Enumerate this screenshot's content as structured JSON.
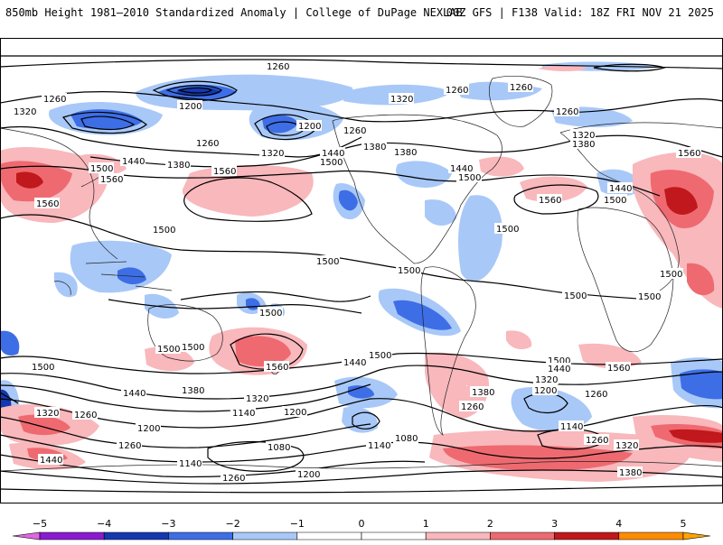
{
  "header": {
    "title_left": "850mb Height 1981–2010 Standardized Anomaly | College of DuPage NEXLAB",
    "title_right": "00Z GFS | F138 Valid: 18Z FRI NOV 21 2025"
  },
  "colorbar": {
    "ticks": [
      "−5",
      "−4",
      "−3",
      "−2",
      "−1",
      "0",
      "1",
      "2",
      "3",
      "4",
      "5"
    ],
    "colors": [
      "#e066e0",
      "#8a1ad0",
      "#1538b0",
      "#3e6ee6",
      "#a8c8f8",
      "#ffffff",
      "#ffffff",
      "#f8b8bc",
      "#ee6a70",
      "#c0181c",
      "#ffa500"
    ]
  },
  "contour_labels": [
    {
      "text": "1260"
    },
    {
      "text": "1260"
    },
    {
      "text": "1320"
    },
    {
      "text": "1200"
    },
    {
      "text": "1200"
    },
    {
      "text": "1260"
    },
    {
      "text": "1320"
    },
    {
      "text": "1260"
    },
    {
      "text": "1260"
    },
    {
      "text": "1260"
    },
    {
      "text": "1320"
    },
    {
      "text": "1260"
    },
    {
      "text": "1320"
    },
    {
      "text": "1380"
    },
    {
      "text": "1380"
    },
    {
      "text": "1440"
    },
    {
      "text": "1500"
    },
    {
      "text": "1560"
    },
    {
      "text": "1440"
    },
    {
      "text": "1380"
    },
    {
      "text": "1560"
    },
    {
      "text": "1380"
    },
    {
      "text": "1440"
    },
    {
      "text": "1500"
    },
    {
      "text": "1440"
    },
    {
      "text": "1500"
    },
    {
      "text": "1560"
    },
    {
      "text": "1560"
    },
    {
      "text": "1440"
    },
    {
      "text": "1500"
    },
    {
      "text": "1560"
    },
    {
      "text": "1500"
    },
    {
      "text": "1500"
    },
    {
      "text": "1500"
    },
    {
      "text": "1500"
    },
    {
      "text": "1500"
    },
    {
      "text": "1500"
    },
    {
      "text": "1500"
    },
    {
      "text": "1500"
    },
    {
      "text": "1500"
    },
    {
      "text": "1500"
    },
    {
      "text": "1500"
    },
    {
      "text": "1560"
    },
    {
      "text": "1440"
    },
    {
      "text": "1500"
    },
    {
      "text": "1500"
    },
    {
      "text": "1440"
    },
    {
      "text": "1560"
    },
    {
      "text": "1440"
    },
    {
      "text": "1380"
    },
    {
      "text": "1320"
    },
    {
      "text": "1380"
    },
    {
      "text": "1320"
    },
    {
      "text": "1260"
    },
    {
      "text": "1200"
    },
    {
      "text": "1140"
    },
    {
      "text": "1200"
    },
    {
      "text": "1260"
    },
    {
      "text": "1320"
    },
    {
      "text": "1260"
    },
    {
      "text": "1200"
    },
    {
      "text": "1140"
    },
    {
      "text": "1080"
    },
    {
      "text": "1140"
    },
    {
      "text": "1080"
    },
    {
      "text": "1260"
    },
    {
      "text": "1200"
    },
    {
      "text": "1440"
    },
    {
      "text": "1140"
    },
    {
      "text": "1260"
    },
    {
      "text": "1200"
    },
    {
      "text": "1320"
    },
    {
      "text": "1380"
    },
    {
      "text": "1260"
    },
    {
      "text": "1140"
    },
    {
      "text": "1260"
    },
    {
      "text": "1320"
    },
    {
      "text": "1380"
    }
  ]
}
